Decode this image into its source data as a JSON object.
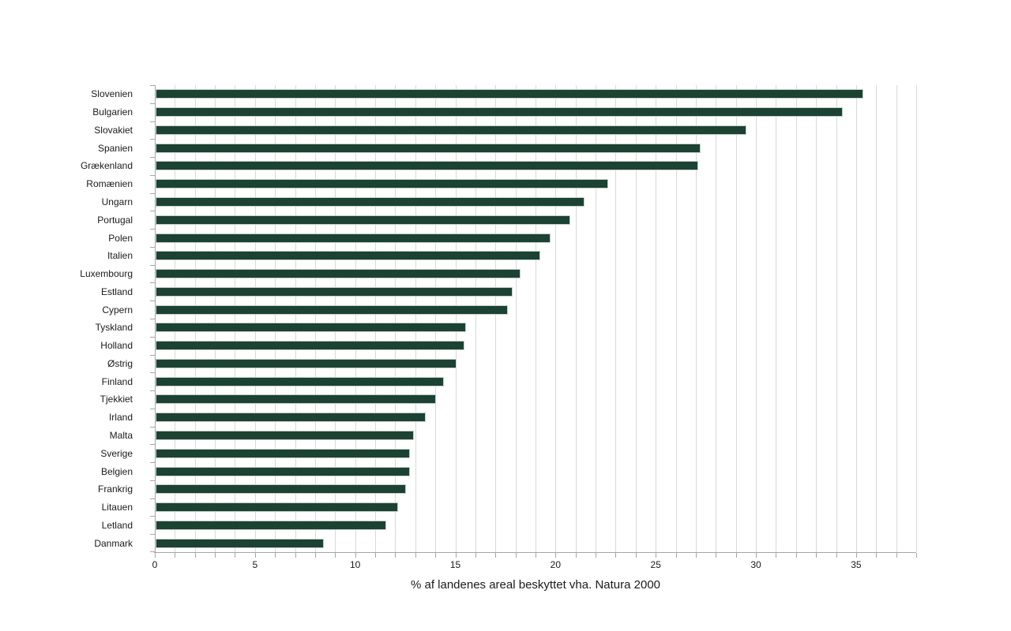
{
  "chart_data": {
    "type": "bar",
    "orientation": "horizontal",
    "title": "",
    "xlabel": "% af landenes areal beskyttet vha. Natura 2000",
    "ylabel": "",
    "categories": [
      "Slovenien",
      "Bulgarien",
      "Slovakiet",
      "Spanien",
      "Grækenland",
      "Romænien",
      "Ungarn",
      "Portugal",
      "Polen",
      "Italien",
      "Luxembourg",
      "Estland",
      "Cypern",
      "Tyskland",
      "Holland",
      "Østrig",
      "Finland",
      "Tjekkiet",
      "Irland",
      "Malta",
      "Sverige",
      "Belgien",
      "Frankrig",
      "Litauen",
      "Letland",
      "Danmark"
    ],
    "values": [
      35.3,
      34.3,
      29.5,
      27.2,
      27.1,
      22.6,
      21.4,
      20.7,
      19.7,
      19.2,
      18.2,
      17.8,
      17.6,
      15.5,
      15.4,
      15.0,
      14.4,
      14.0,
      13.5,
      12.9,
      12.7,
      12.7,
      12.5,
      12.1,
      11.5,
      8.4
    ],
    "xlim": [
      0,
      38
    ],
    "xticks": [
      0,
      5,
      10,
      15,
      20,
      25,
      30,
      35
    ],
    "minor_grid_unit": 1,
    "grid": true,
    "legend": false,
    "colors": {
      "bar": "#1b4233",
      "bar_border": "#c7cdc8",
      "grid": "#d9d9d9",
      "axis": "#a6a6a6",
      "text": "#1a1a1a"
    }
  }
}
